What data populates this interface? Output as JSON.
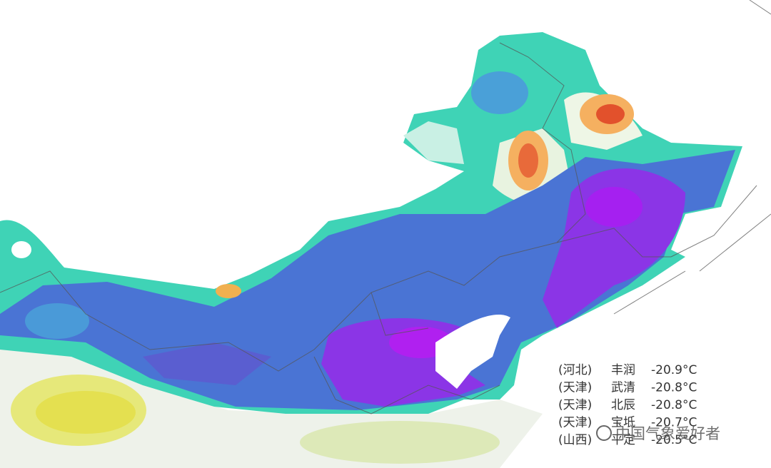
{
  "stations": [
    {
      "province": "(河北)",
      "name": "丰润",
      "temp": "-20.9°C"
    },
    {
      "province": "(天津)",
      "name": "武清",
      "temp": "-20.8°C"
    },
    {
      "province": "(天津)",
      "name": "北辰",
      "temp": "-20.8°C"
    },
    {
      "province": "(天津)",
      "name": "宝坻",
      "temp": "-20.7°C"
    },
    {
      "province": "(山西)",
      "name": "平定",
      "temp": "-20.5°C"
    }
  ],
  "watermark": "中国气象爱好者"
}
